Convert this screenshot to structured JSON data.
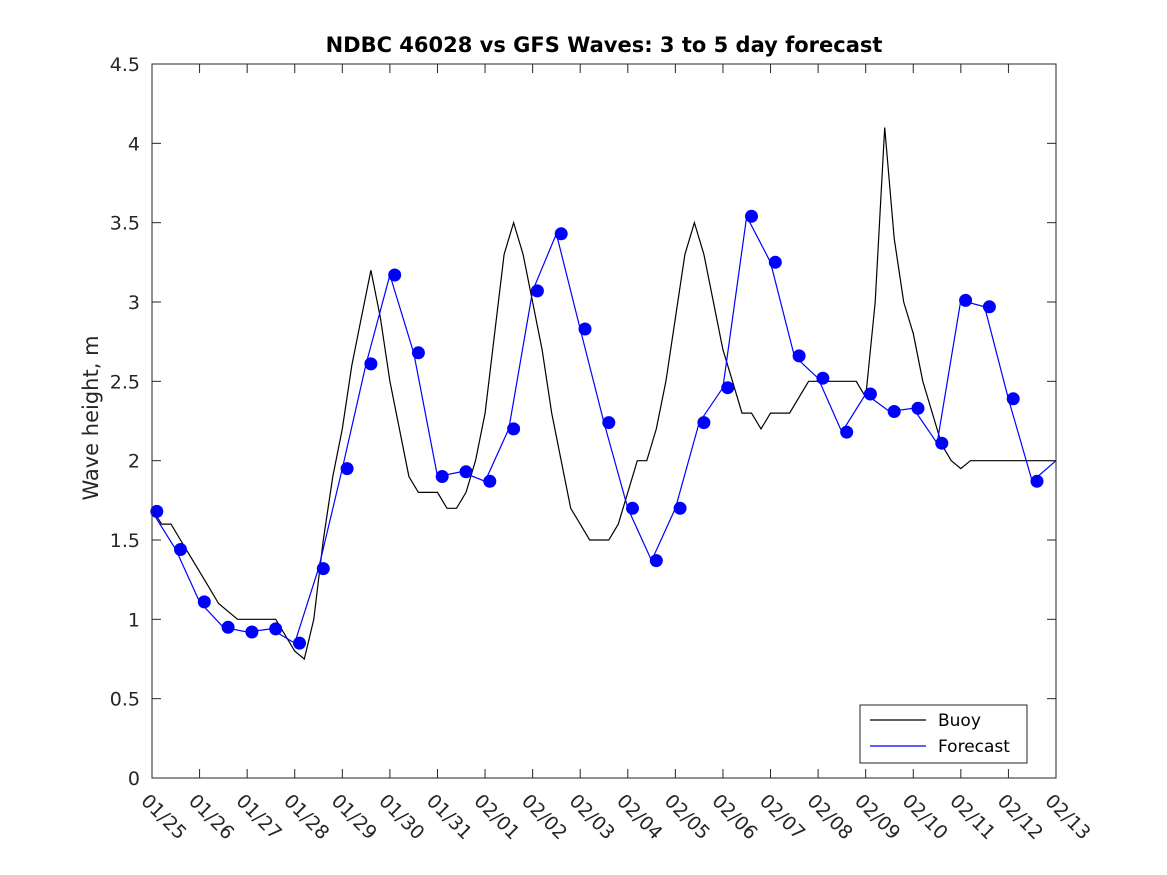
{
  "chart_data": {
    "type": "line",
    "title": "NDBC 46028 vs GFS Waves: 3 to 5 day forecast",
    "xlabel": "",
    "ylabel": "Wave height, m",
    "xlim": [
      0,
      19
    ],
    "ylim": [
      0,
      4.5
    ],
    "x_ticks": [
      "01/25",
      "01/26",
      "01/27",
      "01/28",
      "01/29",
      "01/30",
      "01/31",
      "02/01",
      "02/02",
      "02/03",
      "02/04",
      "02/05",
      "02/06",
      "02/07",
      "02/08",
      "02/09",
      "02/10",
      "02/11",
      "02/12",
      "02/13"
    ],
    "y_ticks": [
      "0",
      "0.5",
      "1",
      "1.5",
      "2",
      "2.5",
      "3",
      "3.5",
      "4",
      "4.5"
    ],
    "legend": {
      "position": "bottom-right",
      "entries": [
        "Buoy",
        "Forecast"
      ]
    },
    "colors": {
      "buoy": "#000000",
      "forecast": "#0000ff",
      "axis": "#262626",
      "grid": "#ffffff"
    },
    "series": [
      {
        "name": "Buoy",
        "x": [
          0,
          0.2,
          0.4,
          0.6,
          0.8,
          1.0,
          1.2,
          1.4,
          1.6,
          1.8,
          2.0,
          2.2,
          2.4,
          2.6,
          2.8,
          3.0,
          3.2,
          3.4,
          3.6,
          3.8,
          4.0,
          4.2,
          4.4,
          4.6,
          4.8,
          5.0,
          5.2,
          5.4,
          5.6,
          5.8,
          6.0,
          6.2,
          6.4,
          6.6,
          6.8,
          7.0,
          7.2,
          7.4,
          7.6,
          7.8,
          8.0,
          8.2,
          8.4,
          8.6,
          8.8,
          9.0,
          9.2,
          9.4,
          9.6,
          9.8,
          10.0,
          10.2,
          10.4,
          10.6,
          10.8,
          11.0,
          11.2,
          11.4,
          11.6,
          11.8,
          12.0,
          12.2,
          12.4,
          12.6,
          12.8,
          13.0,
          13.2,
          13.4,
          13.6,
          13.8,
          14.0,
          14.2,
          14.4,
          14.6,
          14.8,
          15.0,
          15.2,
          15.4,
          15.6,
          15.8,
          16.0,
          16.2,
          16.4,
          16.6,
          16.8,
          17.0,
          17.2,
          17.4,
          17.6,
          17.8,
          18.0,
          18.2,
          18.4,
          18.6,
          18.8,
          19.0
        ],
        "y": [
          1.7,
          1.6,
          1.6,
          1.5,
          1.4,
          1.3,
          1.2,
          1.1,
          1.05,
          1.0,
          1.0,
          1.0,
          1.0,
          1.0,
          0.9,
          0.8,
          0.75,
          1.0,
          1.5,
          1.9,
          2.2,
          2.6,
          2.9,
          3.2,
          2.9,
          2.5,
          2.2,
          1.9,
          1.8,
          1.8,
          1.8,
          1.7,
          1.7,
          1.8,
          2.0,
          2.3,
          2.8,
          3.3,
          3.5,
          3.3,
          3.0,
          2.7,
          2.3,
          2.0,
          1.7,
          1.6,
          1.5,
          1.5,
          1.5,
          1.6,
          1.8,
          2.0,
          2.0,
          2.2,
          2.5,
          2.9,
          3.3,
          3.5,
          3.3,
          3.0,
          2.7,
          2.5,
          2.3,
          2.3,
          2.2,
          2.3,
          2.3,
          2.3,
          2.4,
          2.5,
          2.5,
          2.5,
          2.5,
          2.5,
          2.5,
          2.4,
          3.0,
          4.1,
          3.4,
          3.0,
          2.8,
          2.5,
          2.3,
          2.1,
          2.0,
          1.95,
          2.0,
          2.0,
          2.0,
          2.0,
          2.0,
          2.0,
          2.0,
          2.0,
          2.0,
          2.0
        ]
      },
      {
        "name": "Forecast",
        "x": [
          0,
          0.5,
          1,
          1.5,
          2,
          2.5,
          3,
          3.5,
          4,
          4.5,
          5,
          5.5,
          6,
          6.5,
          7,
          7.5,
          8,
          8.5,
          9,
          9.5,
          10,
          10.5,
          11,
          11.5,
          12,
          12.5,
          13,
          13.5,
          14,
          14.5,
          15,
          15.5,
          16,
          16.5,
          17,
          17.5,
          18,
          18.5,
          19
        ],
        "y": [
          1.68,
          1.44,
          1.11,
          0.95,
          0.92,
          0.94,
          0.85,
          1.32,
          1.95,
          2.61,
          3.17,
          2.68,
          1.9,
          1.93,
          1.87,
          2.2,
          3.07,
          3.43,
          2.83,
          2.24,
          1.7,
          1.37,
          1.7,
          2.24,
          2.46,
          3.54,
          3.25,
          2.66,
          2.52,
          2.18,
          2.42,
          2.31,
          2.33,
          2.11,
          3.01,
          2.97,
          2.39,
          1.87,
          2.0
        ]
      }
    ],
    "forecast_markers": {
      "x": [
        0.1,
        0.6,
        1.1,
        1.6,
        2.1,
        2.6,
        3.1,
        3.6,
        4.1,
        4.6,
        5.1,
        5.6,
        6.1,
        6.6,
        7.1,
        7.6,
        8.1,
        8.6,
        9.1,
        9.6,
        10.1,
        10.6,
        11.1,
        11.6,
        12.1,
        12.6,
        13.1,
        13.6,
        14.1,
        14.6,
        15.1,
        15.6,
        16.1,
        16.6,
        17.1,
        17.6,
        18.1,
        18.6
      ],
      "y": [
        1.68,
        1.44,
        1.11,
        0.95,
        0.92,
        0.94,
        0.85,
        1.32,
        1.95,
        2.61,
        3.17,
        2.68,
        1.9,
        1.93,
        1.87,
        2.2,
        3.07,
        3.43,
        2.83,
        2.24,
        1.7,
        1.37,
        1.7,
        2.24,
        2.46,
        3.54,
        3.25,
        2.66,
        2.52,
        2.18,
        2.42,
        2.31,
        2.33,
        2.11,
        3.01,
        2.97,
        2.39,
        1.87
      ]
    }
  }
}
